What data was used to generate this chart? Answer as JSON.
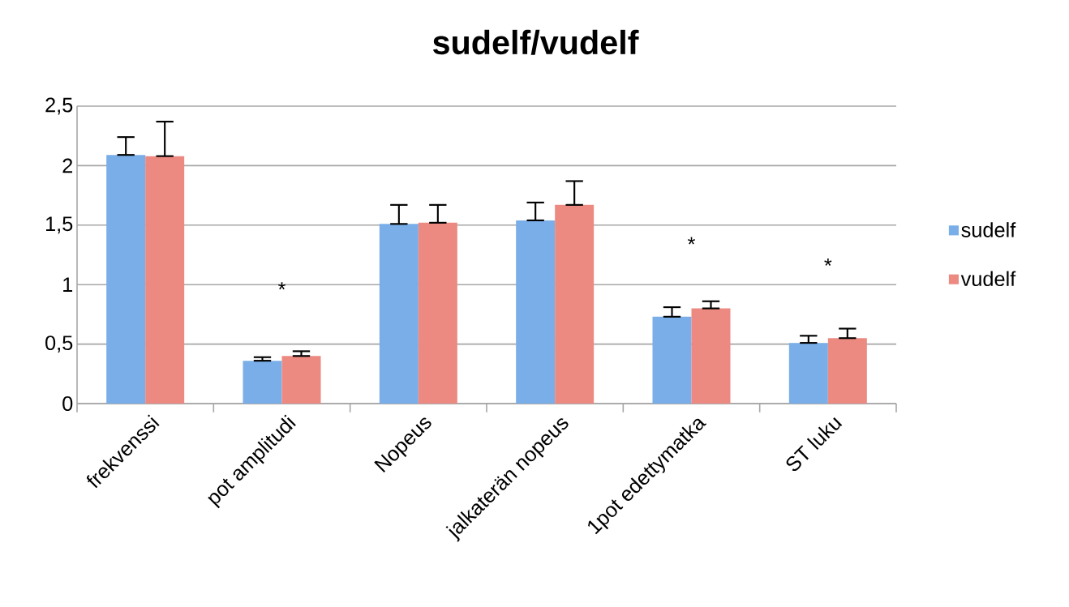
{
  "chart_data": {
    "type": "bar",
    "title": "sudelf/vudelf",
    "categories": [
      "frekvenssi",
      "pot amplitudi",
      "Nopeus",
      "jalkaterän nopeus",
      "1pot edettymatka",
      "ST luku"
    ],
    "series": [
      {
        "name": "sudelf",
        "color": "#7aaee8",
        "values": [
          2.09,
          0.36,
          1.51,
          1.54,
          0.73,
          0.51
        ],
        "errors": [
          [
            2.09,
            2.24
          ],
          [
            0.36,
            0.39
          ],
          [
            1.51,
            1.67
          ],
          [
            1.54,
            1.69
          ],
          [
            0.73,
            0.81
          ],
          [
            0.51,
            0.57
          ]
        ]
      },
      {
        "name": "vudelf",
        "color": "#ec8a82",
        "values": [
          2.08,
          0.4,
          1.52,
          1.67,
          0.8,
          0.55
        ],
        "errors": [
          [
            2.08,
            2.37
          ],
          [
            0.4,
            0.44
          ],
          [
            1.52,
            1.67
          ],
          [
            1.67,
            1.87
          ],
          [
            0.8,
            0.86
          ],
          [
            0.55,
            0.63
          ]
        ]
      }
    ],
    "ylim": [
      0,
      2.5
    ],
    "yticks": [
      {
        "value": 0,
        "label": "0"
      },
      {
        "value": 0.5,
        "label": "0,5"
      },
      {
        "value": 1,
        "label": "1"
      },
      {
        "value": 1.5,
        "label": "1,5"
      },
      {
        "value": 2,
        "label": "2"
      },
      {
        "value": 2.5,
        "label": "2,5"
      }
    ],
    "grid": "y",
    "legend": "right",
    "annotations": [
      "*",
      "*",
      "*"
    ]
  }
}
